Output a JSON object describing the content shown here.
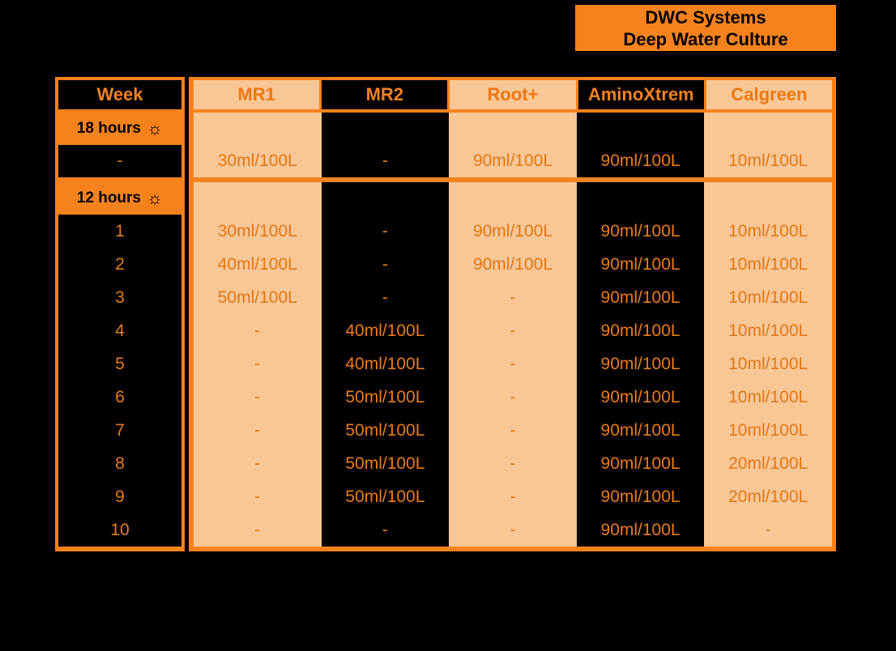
{
  "title": {
    "line1": "DWC Systems",
    "line2": "Deep Water Culture"
  },
  "colors": {
    "accent": "#f5821d",
    "peach": "#f9c795",
    "value_text": "#e87c1a",
    "background": "#000000",
    "badge_text": "#000000"
  },
  "icons": {
    "sun": "☼"
  },
  "table": {
    "week_header": "Week",
    "columns": [
      {
        "label": "MR1",
        "theme": "peach"
      },
      {
        "label": "MR2",
        "theme": "black"
      },
      {
        "label": "Root+",
        "theme": "peach"
      },
      {
        "label": "AminoXtrem",
        "theme": "black"
      },
      {
        "label": "Calgreen",
        "theme": "peach"
      }
    ],
    "sections": [
      {
        "badge": "18 hours",
        "rows": [
          {
            "week": "-",
            "values": [
              "30ml/100L",
              "-",
              "90ml/100L",
              "90ml/100L",
              "10ml/100L"
            ]
          }
        ]
      },
      {
        "badge": "12 hours",
        "rows": [
          {
            "week": "1",
            "values": [
              "30ml/100L",
              "-",
              "90ml/100L",
              "90ml/100L",
              "10ml/100L"
            ]
          },
          {
            "week": "2",
            "values": [
              "40ml/100L",
              "-",
              "90ml/100L",
              "90ml/100L",
              "10ml/100L"
            ]
          },
          {
            "week": "3",
            "values": [
              "50ml/100L",
              "-",
              "-",
              "90ml/100L",
              "10ml/100L"
            ]
          },
          {
            "week": "4",
            "values": [
              "-",
              "40ml/100L",
              "-",
              "90ml/100L",
              "10ml/100L"
            ]
          },
          {
            "week": "5",
            "values": [
              "-",
              "40ml/100L",
              "-",
              "90ml/100L",
              "10ml/100L"
            ]
          },
          {
            "week": "6",
            "values": [
              "-",
              "50ml/100L",
              "-",
              "90ml/100L",
              "10ml/100L"
            ]
          },
          {
            "week": "7",
            "values": [
              "-",
              "50ml/100L",
              "-",
              "90ml/100L",
              "10ml/100L"
            ]
          },
          {
            "week": "8",
            "values": [
              "-",
              "50ml/100L",
              "-",
              "90ml/100L",
              "20ml/100L"
            ]
          },
          {
            "week": "9",
            "values": [
              "-",
              "50ml/100L",
              "-",
              "90ml/100L",
              "20ml/100L"
            ]
          },
          {
            "week": "10",
            "values": [
              "-",
              "-",
              "-",
              "90ml/100L",
              "-"
            ]
          }
        ]
      }
    ]
  },
  "chart_data": {
    "type": "table",
    "title": "DWC Systems Deep Water Culture feeding schedule",
    "columns": [
      "Week",
      "MR1",
      "MR2",
      "Root+",
      "AminoXtrem",
      "Calgreen"
    ],
    "sections": [
      {
        "photoperiod": "18 hours",
        "rows": [
          [
            "-",
            "30ml/100L",
            "-",
            "90ml/100L",
            "90ml/100L",
            "10ml/100L"
          ]
        ]
      },
      {
        "photoperiod": "12 hours",
        "rows": [
          [
            "1",
            "30ml/100L",
            "-",
            "90ml/100L",
            "90ml/100L",
            "10ml/100L"
          ],
          [
            "2",
            "40ml/100L",
            "-",
            "90ml/100L",
            "90ml/100L",
            "10ml/100L"
          ],
          [
            "3",
            "50ml/100L",
            "-",
            "-",
            "90ml/100L",
            "10ml/100L"
          ],
          [
            "4",
            "-",
            "40ml/100L",
            "-",
            "90ml/100L",
            "10ml/100L"
          ],
          [
            "5",
            "-",
            "40ml/100L",
            "-",
            "90ml/100L",
            "10ml/100L"
          ],
          [
            "6",
            "-",
            "50ml/100L",
            "-",
            "90ml/100L",
            "10ml/100L"
          ],
          [
            "7",
            "-",
            "50ml/100L",
            "-",
            "90ml/100L",
            "10ml/100L"
          ],
          [
            "8",
            "-",
            "50ml/100L",
            "-",
            "90ml/100L",
            "20ml/100L"
          ],
          [
            "9",
            "-",
            "50ml/100L",
            "-",
            "90ml/100L",
            "20ml/100L"
          ],
          [
            "10",
            "-",
            "-",
            "-",
            "90ml/100L",
            "-"
          ]
        ]
      }
    ]
  }
}
